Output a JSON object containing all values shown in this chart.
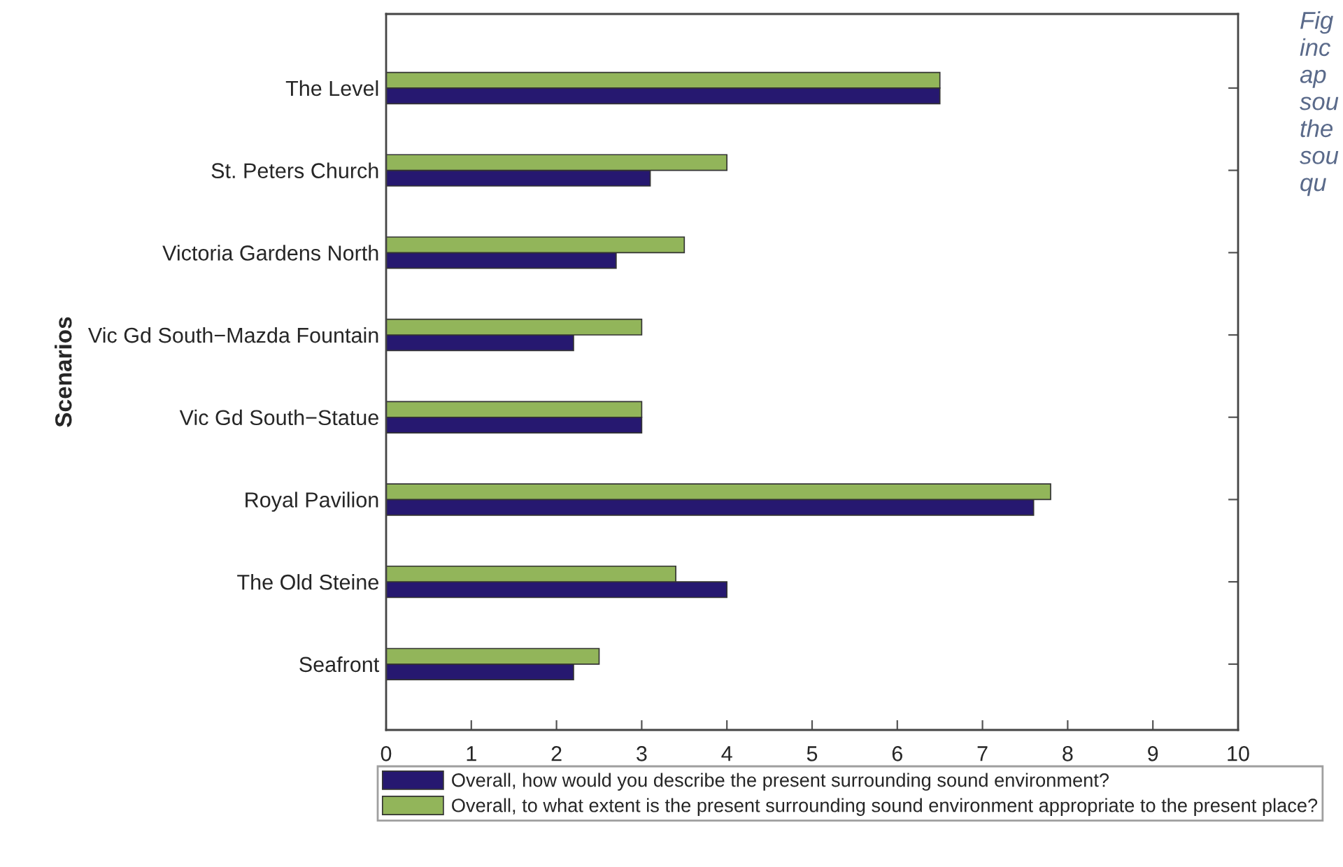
{
  "chart_data": {
    "type": "bar",
    "orientation": "horizontal",
    "ylabel": "Scenarios",
    "categories": [
      "The Level",
      "St. Peters Church",
      "Victoria Gardens North",
      "Vic Gd South−Mazda Fountain",
      "Vic Gd South−Statue",
      "Royal Pavilion",
      "The Old Steine",
      "Seafront"
    ],
    "series": [
      {
        "name": "Overall, how would you describe the present surrounding sound environment?",
        "color": "#261870",
        "values": [
          6.5,
          3.1,
          2.7,
          2.2,
          3.0,
          7.6,
          4.0,
          2.2
        ]
      },
      {
        "name": "Overall, to what extent is the present surrounding sound environment appropriate to the present place?",
        "color": "#92b55a",
        "values": [
          6.5,
          4.0,
          3.5,
          3.0,
          3.0,
          7.8,
          3.4,
          2.5
        ]
      }
    ],
    "xlim": [
      0,
      10
    ],
    "xticks": [
      0,
      1,
      2,
      3,
      4,
      5,
      6,
      7,
      8,
      9,
      10
    ],
    "legend": "bottom",
    "annotations": [
      "Fig\ninc\nap\nsou\nthe\nsou\nqu"
    ]
  }
}
